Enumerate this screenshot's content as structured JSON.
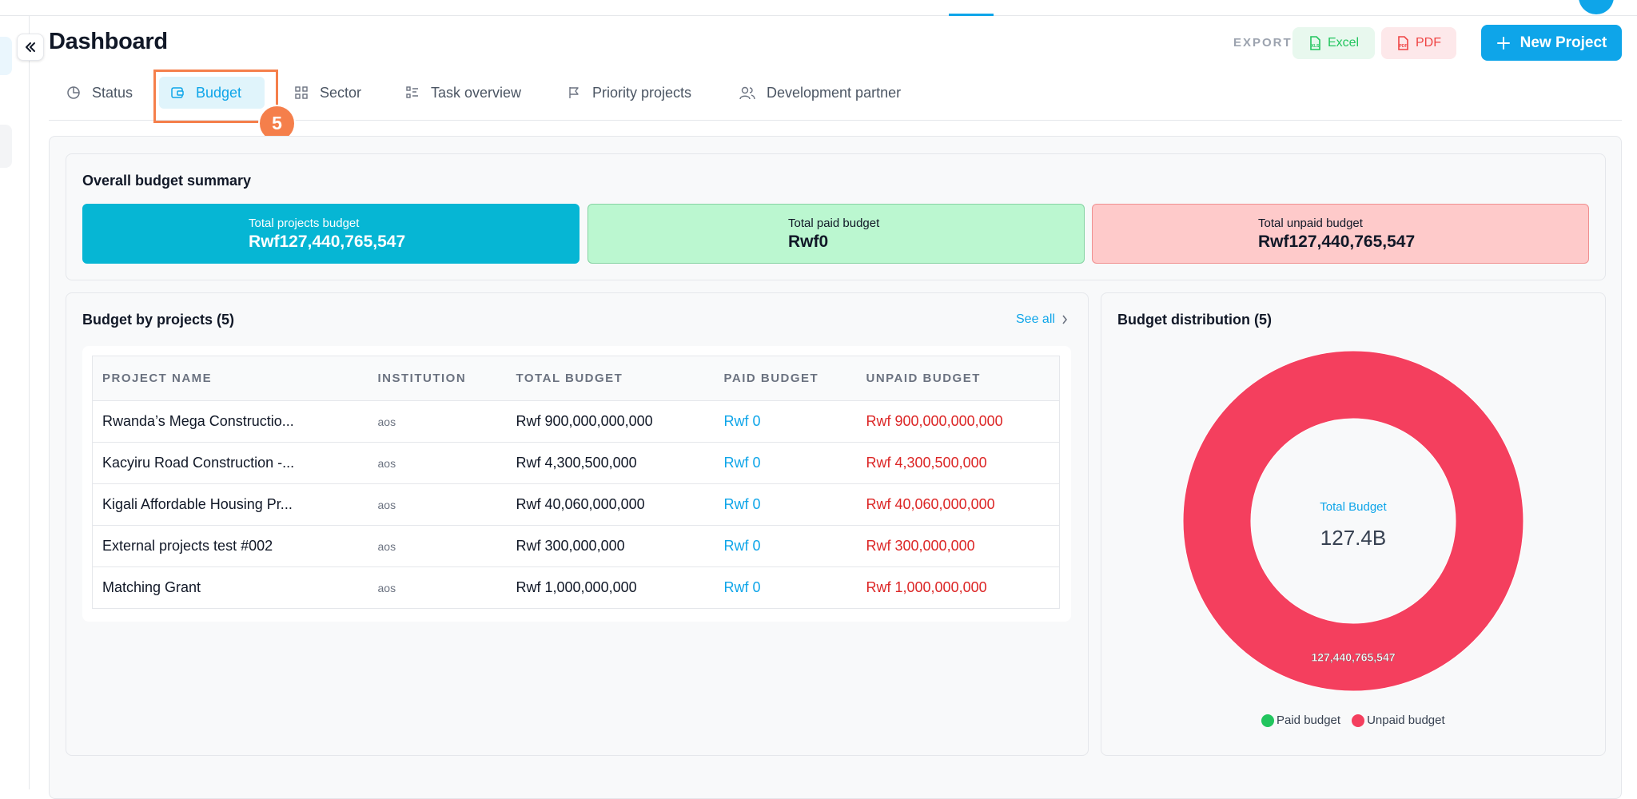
{
  "header": {
    "title": "Dashboard",
    "export_label": "EXPORT",
    "excel_label": "Excel",
    "pdf_label": "PDF",
    "new_project_label": "New Project"
  },
  "tabs": [
    {
      "label": "Status",
      "icon": "pie-chart-icon"
    },
    {
      "label": "Budget",
      "icon": "wallet-icon",
      "active": true
    },
    {
      "label": "Sector",
      "icon": "grid-icon"
    },
    {
      "label": "Task overview",
      "icon": "checklist-icon"
    },
    {
      "label": "Priority projects",
      "icon": "flag-icon"
    },
    {
      "label": "Development partner",
      "icon": "users-icon"
    }
  ],
  "step_badge": "5",
  "summary": {
    "title": "Overall budget summary",
    "total": {
      "label": "Total projects budget",
      "value": "Rwf127,440,765,547"
    },
    "paid": {
      "label": "Total paid budget",
      "value": "Rwf0"
    },
    "unpaid": {
      "label": "Total unpaid budget",
      "value": "Rwf127,440,765,547"
    }
  },
  "projects": {
    "title": "Budget by projects (5)",
    "see_all": "See all",
    "columns": [
      "PROJECT NAME",
      "INSTITUTION",
      "TOTAL BUDGET",
      "PAID BUDGET",
      "UNPAID BUDGET"
    ],
    "rows": [
      {
        "name": "Rwanda’s Mega Constructio...",
        "institution": "aos",
        "total": "Rwf 900,000,000,000",
        "paid": "Rwf 0",
        "unpaid": "Rwf 900,000,000,000"
      },
      {
        "name": "Kacyiru Road Construction -...",
        "institution": "aos",
        "total": "Rwf 4,300,500,000",
        "paid": "Rwf 0",
        "unpaid": "Rwf 4,300,500,000"
      },
      {
        "name": "Kigali Affordable Housing Pr...",
        "institution": "aos",
        "total": "Rwf 40,060,000,000",
        "paid": "Rwf 0",
        "unpaid": "Rwf 40,060,000,000"
      },
      {
        "name": "External projects test #002",
        "institution": "aos",
        "total": "Rwf 300,000,000",
        "paid": "Rwf 0",
        "unpaid": "Rwf 300,000,000"
      },
      {
        "name": "Matching Grant",
        "institution": "aos",
        "total": "Rwf 1,000,000,000",
        "paid": "Rwf 0",
        "unpaid": "Rwf 1,000,000,000"
      }
    ]
  },
  "distribution": {
    "title": "Budget distribution (5)",
    "center_label": "Total Budget",
    "center_value": "127.4B"
  },
  "colors": {
    "accent": "#0ea5e9",
    "paid": "#22c55e",
    "unpaid": "#f43f5e",
    "highlight": "#f57f4b"
  },
  "chart_data": {
    "type": "pie",
    "categories": [
      "Paid budget",
      "Unpaid budget"
    ],
    "values": [
      0,
      127440765547
    ],
    "data_labels": [
      "",
      "127,440,765,547"
    ],
    "legend": "bottom"
  }
}
